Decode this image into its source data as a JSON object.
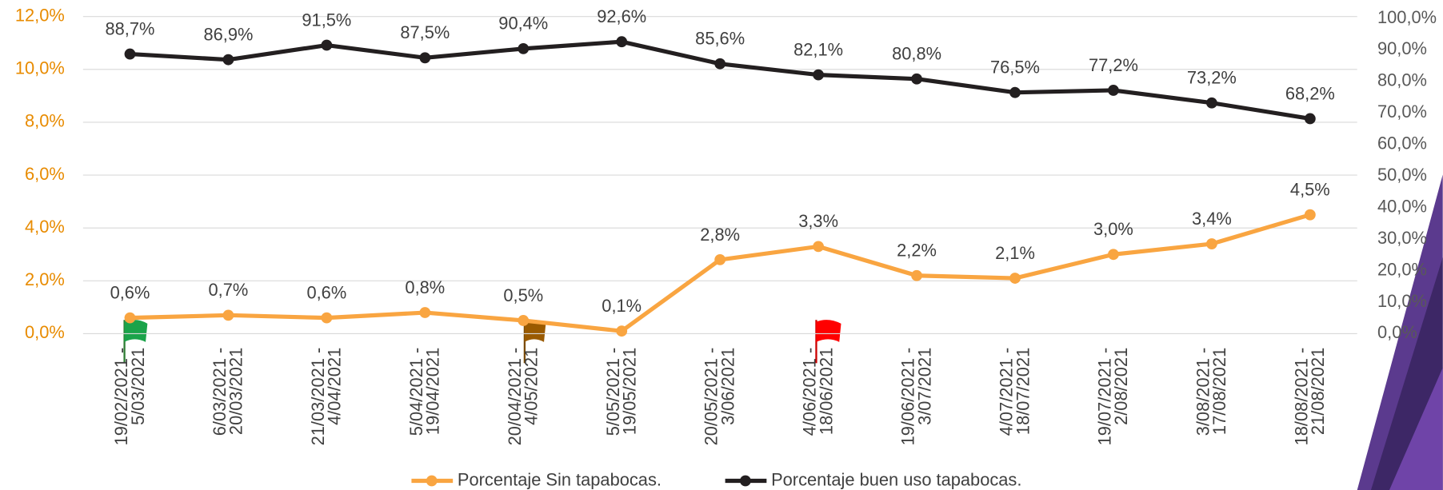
{
  "chart_data": {
    "type": "line",
    "categories": [
      [
        "19/02/2021 -",
        "5/03/2021"
      ],
      [
        "6/03/2021 -",
        "20/03/2021"
      ],
      [
        "21/03/2021 -",
        "4/04/2021"
      ],
      [
        "5/04/2021 -",
        "19/04/2021"
      ],
      [
        "20/04/2021 -",
        "4/05/2021"
      ],
      [
        "5/05/2021 -",
        "19/05/2021"
      ],
      [
        "20/05/2021 -",
        "3/06/2021"
      ],
      [
        "4/06/2021 -",
        "18/06/2021"
      ],
      [
        "19/06/2021 -",
        "3/07/2021"
      ],
      [
        "4/07/2021 -",
        "18/07/2021"
      ],
      [
        "19/07/2021 -",
        "2/08/2021"
      ],
      [
        "3/08/2021 -",
        "17/08/2021"
      ],
      [
        "18/08/2021 -",
        "21/08/2021"
      ]
    ],
    "series": [
      {
        "name": "Porcentaje Sin tapabocas.",
        "color": "#f9a541",
        "values": [
          0.6,
          0.7,
          0.6,
          0.8,
          0.5,
          0.1,
          2.8,
          3.3,
          2.2,
          2.1,
          3.0,
          3.4,
          4.5
        ],
        "value_labels": [
          "0,6%",
          "0,7%",
          "0,6%",
          "0,8%",
          "0,5%",
          "0,1%",
          "2,8%",
          "3,3%",
          "2,2%",
          "2,1%",
          "3,0%",
          "3,4%",
          "4,5%"
        ]
      },
      {
        "name": "Porcentaje buen uso tapabocas.",
        "color": "#231f20",
        "axis": "y2",
        "values": [
          88.7,
          86.9,
          91.5,
          87.5,
          90.4,
          92.6,
          85.6,
          82.1,
          80.8,
          76.5,
          77.2,
          73.2,
          68.2
        ],
        "value_labels": [
          "88,7%",
          "86,9%",
          "91,5%",
          "87,5%",
          "90,4%",
          "92,6%",
          "85,6%",
          "82,1%",
          "80,8%",
          "76,5%",
          "77,2%",
          "73,2%",
          "68,2%"
        ]
      }
    ],
    "ylim": [
      0,
      12
    ],
    "yticks": [
      {
        "value": 0,
        "label": "0,0%"
      },
      {
        "value": 2,
        "label": "2,0%"
      },
      {
        "value": 4,
        "label": "4,0%"
      },
      {
        "value": 6,
        "label": "6,0%"
      },
      {
        "value": 8,
        "label": "8,0%"
      },
      {
        "value": 10,
        "label": "10,0%"
      },
      {
        "value": 12,
        "label": "12,0%"
      }
    ],
    "y2lim": [
      0,
      100
    ],
    "y2ticks": [
      {
        "value": 0,
        "label": "0,0%"
      },
      {
        "value": 10,
        "label": "10,0%"
      },
      {
        "value": 20,
        "label": "20,0%"
      },
      {
        "value": 30,
        "label": "30,0%"
      },
      {
        "value": 40,
        "label": "40,0%"
      },
      {
        "value": 50,
        "label": "50,0%"
      },
      {
        "value": 60,
        "label": "60,0%"
      },
      {
        "value": 70,
        "label": "70,0%"
      },
      {
        "value": 80,
        "label": "80,0%"
      },
      {
        "value": 90,
        "label": "90,0%"
      },
      {
        "value": 100,
        "label": "100,0%"
      }
    ],
    "grid": true,
    "legend": "bottom",
    "ytick_color": "#e88b00",
    "y2tick_color": "#595959"
  }
}
